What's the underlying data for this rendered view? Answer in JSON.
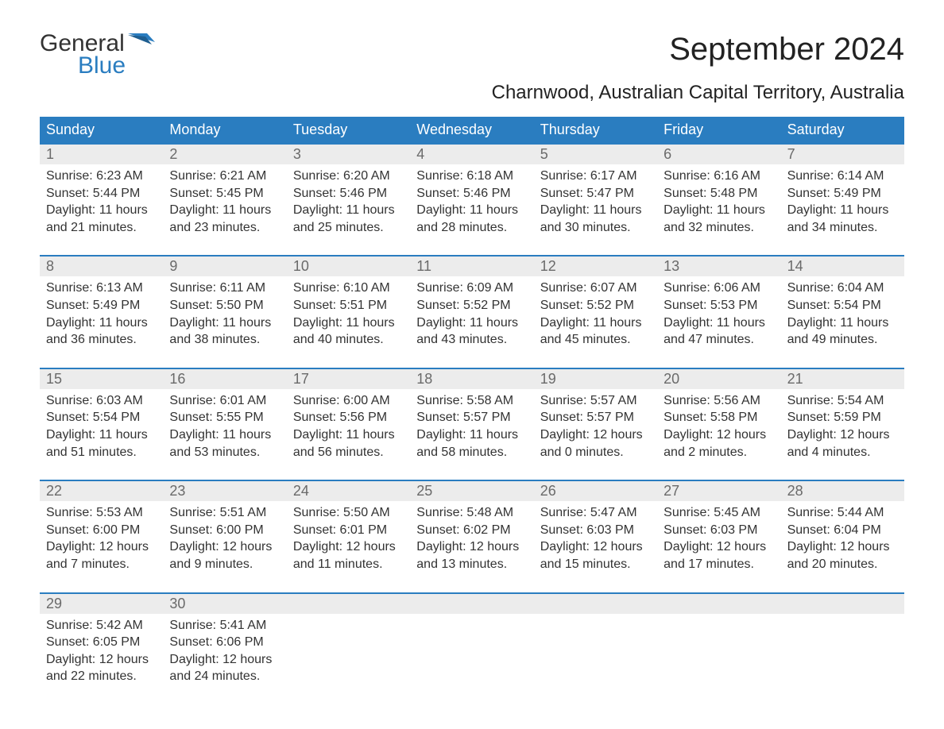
{
  "logo": {
    "general": "General",
    "blue": "Blue",
    "flag_color": "#2a7dc0"
  },
  "title": "September 2024",
  "location": "Charnwood, Australian Capital Territory, Australia",
  "colors": {
    "header_bg": "#2a7dc0",
    "header_text": "#ffffff",
    "daynum_bg": "#ececec",
    "daynum_text": "#6a6a6a",
    "body_text": "#333333",
    "week_border": "#2a7dc0",
    "page_bg": "#ffffff"
  },
  "typography": {
    "month_title_fontsize": 40,
    "location_fontsize": 24,
    "weekday_fontsize": 18,
    "daynum_fontsize": 18,
    "body_fontsize": 16,
    "logo_fontsize": 30
  },
  "weekdays": [
    "Sunday",
    "Monday",
    "Tuesday",
    "Wednesday",
    "Thursday",
    "Friday",
    "Saturday"
  ],
  "weeks": [
    [
      {
        "num": "1",
        "sunrise": "Sunrise: 6:23 AM",
        "sunset": "Sunset: 5:44 PM",
        "daylight1": "Daylight: 11 hours",
        "daylight2": "and 21 minutes."
      },
      {
        "num": "2",
        "sunrise": "Sunrise: 6:21 AM",
        "sunset": "Sunset: 5:45 PM",
        "daylight1": "Daylight: 11 hours",
        "daylight2": "and 23 minutes."
      },
      {
        "num": "3",
        "sunrise": "Sunrise: 6:20 AM",
        "sunset": "Sunset: 5:46 PM",
        "daylight1": "Daylight: 11 hours",
        "daylight2": "and 25 minutes."
      },
      {
        "num": "4",
        "sunrise": "Sunrise: 6:18 AM",
        "sunset": "Sunset: 5:46 PM",
        "daylight1": "Daylight: 11 hours",
        "daylight2": "and 28 minutes."
      },
      {
        "num": "5",
        "sunrise": "Sunrise: 6:17 AM",
        "sunset": "Sunset: 5:47 PM",
        "daylight1": "Daylight: 11 hours",
        "daylight2": "and 30 minutes."
      },
      {
        "num": "6",
        "sunrise": "Sunrise: 6:16 AM",
        "sunset": "Sunset: 5:48 PM",
        "daylight1": "Daylight: 11 hours",
        "daylight2": "and 32 minutes."
      },
      {
        "num": "7",
        "sunrise": "Sunrise: 6:14 AM",
        "sunset": "Sunset: 5:49 PM",
        "daylight1": "Daylight: 11 hours",
        "daylight2": "and 34 minutes."
      }
    ],
    [
      {
        "num": "8",
        "sunrise": "Sunrise: 6:13 AM",
        "sunset": "Sunset: 5:49 PM",
        "daylight1": "Daylight: 11 hours",
        "daylight2": "and 36 minutes."
      },
      {
        "num": "9",
        "sunrise": "Sunrise: 6:11 AM",
        "sunset": "Sunset: 5:50 PM",
        "daylight1": "Daylight: 11 hours",
        "daylight2": "and 38 minutes."
      },
      {
        "num": "10",
        "sunrise": "Sunrise: 6:10 AM",
        "sunset": "Sunset: 5:51 PM",
        "daylight1": "Daylight: 11 hours",
        "daylight2": "and 40 minutes."
      },
      {
        "num": "11",
        "sunrise": "Sunrise: 6:09 AM",
        "sunset": "Sunset: 5:52 PM",
        "daylight1": "Daylight: 11 hours",
        "daylight2": "and 43 minutes."
      },
      {
        "num": "12",
        "sunrise": "Sunrise: 6:07 AM",
        "sunset": "Sunset: 5:52 PM",
        "daylight1": "Daylight: 11 hours",
        "daylight2": "and 45 minutes."
      },
      {
        "num": "13",
        "sunrise": "Sunrise: 6:06 AM",
        "sunset": "Sunset: 5:53 PM",
        "daylight1": "Daylight: 11 hours",
        "daylight2": "and 47 minutes."
      },
      {
        "num": "14",
        "sunrise": "Sunrise: 6:04 AM",
        "sunset": "Sunset: 5:54 PM",
        "daylight1": "Daylight: 11 hours",
        "daylight2": "and 49 minutes."
      }
    ],
    [
      {
        "num": "15",
        "sunrise": "Sunrise: 6:03 AM",
        "sunset": "Sunset: 5:54 PM",
        "daylight1": "Daylight: 11 hours",
        "daylight2": "and 51 minutes."
      },
      {
        "num": "16",
        "sunrise": "Sunrise: 6:01 AM",
        "sunset": "Sunset: 5:55 PM",
        "daylight1": "Daylight: 11 hours",
        "daylight2": "and 53 minutes."
      },
      {
        "num": "17",
        "sunrise": "Sunrise: 6:00 AM",
        "sunset": "Sunset: 5:56 PM",
        "daylight1": "Daylight: 11 hours",
        "daylight2": "and 56 minutes."
      },
      {
        "num": "18",
        "sunrise": "Sunrise: 5:58 AM",
        "sunset": "Sunset: 5:57 PM",
        "daylight1": "Daylight: 11 hours",
        "daylight2": "and 58 minutes."
      },
      {
        "num": "19",
        "sunrise": "Sunrise: 5:57 AM",
        "sunset": "Sunset: 5:57 PM",
        "daylight1": "Daylight: 12 hours",
        "daylight2": "and 0 minutes."
      },
      {
        "num": "20",
        "sunrise": "Sunrise: 5:56 AM",
        "sunset": "Sunset: 5:58 PM",
        "daylight1": "Daylight: 12 hours",
        "daylight2": "and 2 minutes."
      },
      {
        "num": "21",
        "sunrise": "Sunrise: 5:54 AM",
        "sunset": "Sunset: 5:59 PM",
        "daylight1": "Daylight: 12 hours",
        "daylight2": "and 4 minutes."
      }
    ],
    [
      {
        "num": "22",
        "sunrise": "Sunrise: 5:53 AM",
        "sunset": "Sunset: 6:00 PM",
        "daylight1": "Daylight: 12 hours",
        "daylight2": "and 7 minutes."
      },
      {
        "num": "23",
        "sunrise": "Sunrise: 5:51 AM",
        "sunset": "Sunset: 6:00 PM",
        "daylight1": "Daylight: 12 hours",
        "daylight2": "and 9 minutes."
      },
      {
        "num": "24",
        "sunrise": "Sunrise: 5:50 AM",
        "sunset": "Sunset: 6:01 PM",
        "daylight1": "Daylight: 12 hours",
        "daylight2": "and 11 minutes."
      },
      {
        "num": "25",
        "sunrise": "Sunrise: 5:48 AM",
        "sunset": "Sunset: 6:02 PM",
        "daylight1": "Daylight: 12 hours",
        "daylight2": "and 13 minutes."
      },
      {
        "num": "26",
        "sunrise": "Sunrise: 5:47 AM",
        "sunset": "Sunset: 6:03 PM",
        "daylight1": "Daylight: 12 hours",
        "daylight2": "and 15 minutes."
      },
      {
        "num": "27",
        "sunrise": "Sunrise: 5:45 AM",
        "sunset": "Sunset: 6:03 PM",
        "daylight1": "Daylight: 12 hours",
        "daylight2": "and 17 minutes."
      },
      {
        "num": "28",
        "sunrise": "Sunrise: 5:44 AM",
        "sunset": "Sunset: 6:04 PM",
        "daylight1": "Daylight: 12 hours",
        "daylight2": "and 20 minutes."
      }
    ],
    [
      {
        "num": "29",
        "sunrise": "Sunrise: 5:42 AM",
        "sunset": "Sunset: 6:05 PM",
        "daylight1": "Daylight: 12 hours",
        "daylight2": "and 22 minutes."
      },
      {
        "num": "30",
        "sunrise": "Sunrise: 5:41 AM",
        "sunset": "Sunset: 6:06 PM",
        "daylight1": "Daylight: 12 hours",
        "daylight2": "and 24 minutes."
      },
      null,
      null,
      null,
      null,
      null
    ]
  ]
}
